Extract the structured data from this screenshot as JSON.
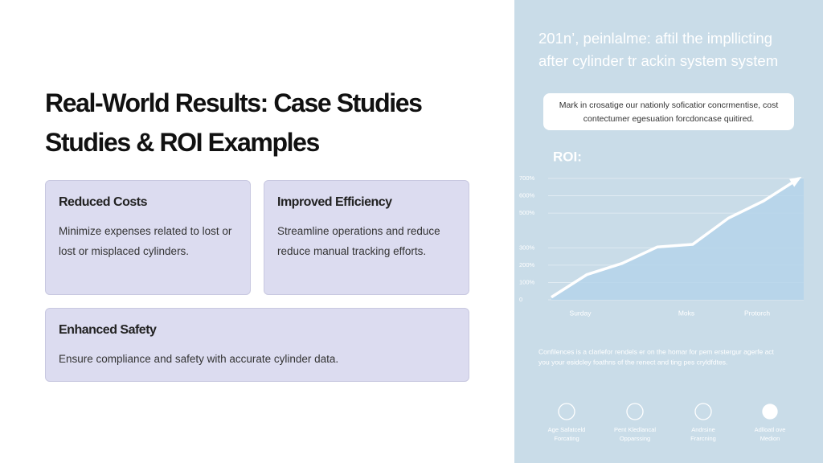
{
  "slide": {
    "title_lines": [
      "Real-World Results: Case Studies",
      "Studies & ROI Examples"
    ],
    "cards": [
      {
        "heading": "Reduced Costs",
        "lines": [
          "Minimize expenses related to lost or",
          "lost or misplaced cylinders."
        ]
      },
      {
        "heading": "Improved Efficiency",
        "lines": [
          "Streamline operations and reduce",
          "reduce manual tracking efforts."
        ]
      },
      {
        "heading": "Enhanced Safety",
        "lines": [
          "Ensure compliance and safety with accurate cylinder data."
        ]
      }
    ]
  },
  "panel": {
    "heading_lines": [
      "201n’, peinlalme: aftil the impllicting",
      "after cylinder tr ackin system system"
    ],
    "callout_lines": [
      "Mark in crosatige our nationly soficatior concrmentise, cost",
      "contectumer egesuation forcdoncase quitired."
    ],
    "footnote_lines": [
      "Confilences is a clarlefor rendels er on the homar for pem erstergur agerfe act",
      "you your esidcley foathns of the renect and ting pes cryldfdtes."
    ],
    "features": [
      {
        "lines": [
          "Age Safatceld",
          "Forcating"
        ]
      },
      {
        "lines": [
          "Pent Kledlancal",
          "Opparssing"
        ]
      },
      {
        "lines": [
          "Andrsine",
          "Frarcning"
        ]
      },
      {
        "lines": [
          "Adlloatl ove",
          "Medion"
        ]
      }
    ]
  },
  "chart_data": {
    "type": "area",
    "title": "ROI:",
    "categories": [
      null,
      "Surday",
      null,
      null,
      "Moks",
      null,
      "Protorch",
      null
    ],
    "values": [
      15,
      145,
      210,
      305,
      320,
      470,
      570,
      700
    ],
    "color": "#b5d3ea",
    "line_color": "#ffffff",
    "ylim": [
      0,
      700
    ],
    "yticks": [
      {
        "value": 700,
        "label": "700%"
      },
      {
        "value": 600,
        "label": "600%"
      },
      {
        "value": 300,
        "label": "300%"
      },
      {
        "value": 500,
        "label": "500%"
      },
      {
        "value": 200,
        "label": "200%"
      },
      {
        "value": 100,
        "label": "100%"
      },
      0
    ],
    "grid": true
  }
}
